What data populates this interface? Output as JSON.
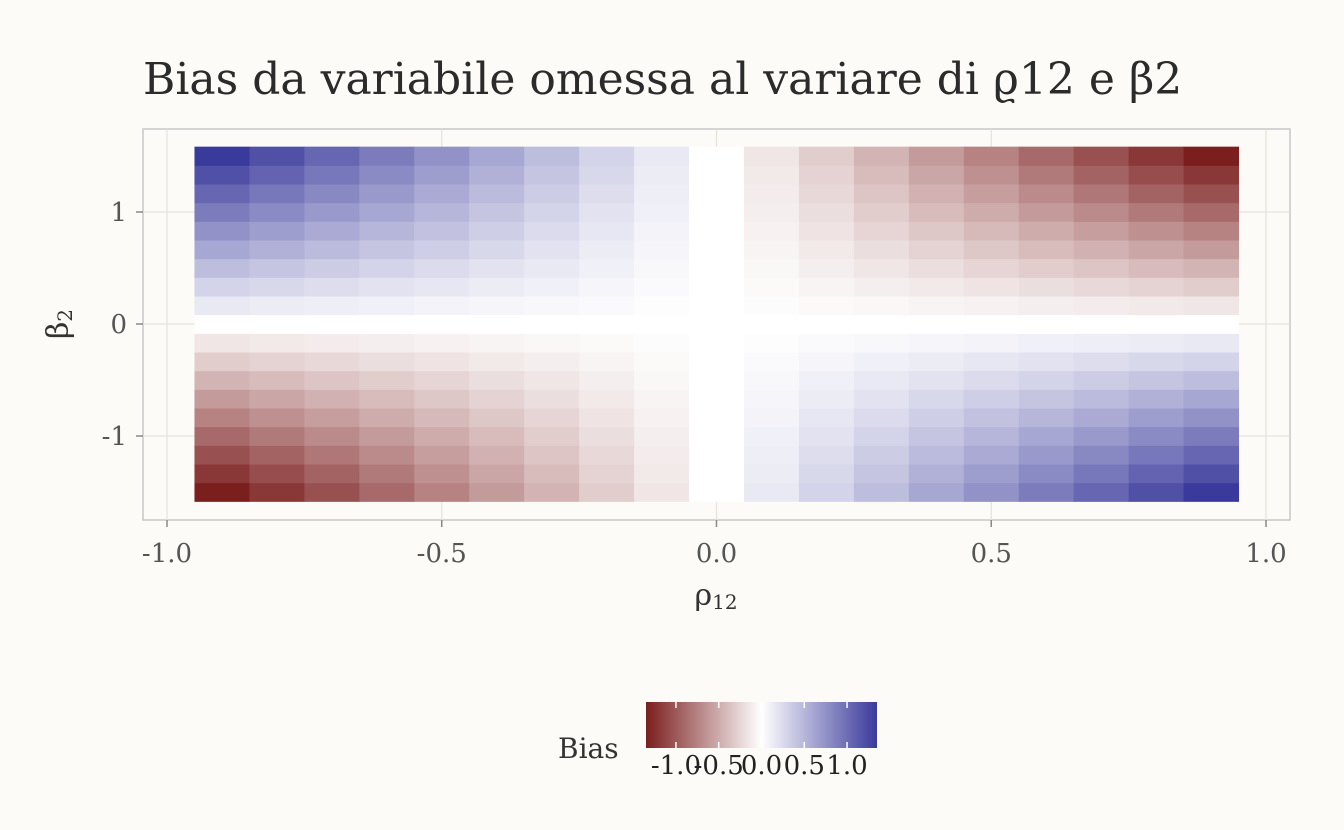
{
  "chart_data": {
    "type": "heatmap",
    "title": "Bias da variabile omessa al variare di ϱ12 e β2",
    "xlabel": "ρ",
    "xlabel_sub": "12",
    "ylabel": "β",
    "ylabel_sub": "2",
    "xlim": [
      -1.0,
      1.0
    ],
    "ylim": [
      -1.6,
      1.6
    ],
    "x_ticks": [
      -1.0,
      -0.5,
      0.0,
      0.5,
      1.0
    ],
    "x_tick_labels": [
      "-1.0",
      "-0.5",
      "0.0",
      "0.5",
      "1.0"
    ],
    "y_ticks": [
      -1,
      0,
      1
    ],
    "y_tick_labels": [
      "-1",
      "0",
      "1"
    ],
    "x": [
      -0.9,
      -0.8,
      -0.7,
      -0.6,
      -0.5,
      -0.4,
      -0.3,
      -0.2,
      -0.1,
      0.0,
      0.1,
      0.2,
      0.3,
      0.4,
      0.5,
      0.6,
      0.7,
      0.8,
      0.9
    ],
    "y": [
      -1.5,
      -1.333,
      -1.167,
      -1.0,
      -0.833,
      -0.667,
      -0.5,
      -0.333,
      -0.167,
      0.0,
      0.167,
      0.333,
      0.5,
      0.667,
      0.833,
      1.0,
      1.167,
      1.333,
      1.5
    ],
    "value_rule": "bias = -x * y (negative = red, positive = blue)",
    "color_scale": {
      "low": "#7b1e1e",
      "mid": "#ffffff",
      "high": "#3a3a9c",
      "limits": [
        -1.35,
        1.35
      ]
    },
    "legend": {
      "title": "Bias",
      "position": "bottom",
      "tick_labels": [
        "-1.0",
        "-0.5",
        "0.0",
        "0.5",
        "1.0"
      ],
      "tick_values": [
        -1.0,
        -0.5,
        0.0,
        0.5,
        1.0
      ]
    },
    "grid": true
  }
}
